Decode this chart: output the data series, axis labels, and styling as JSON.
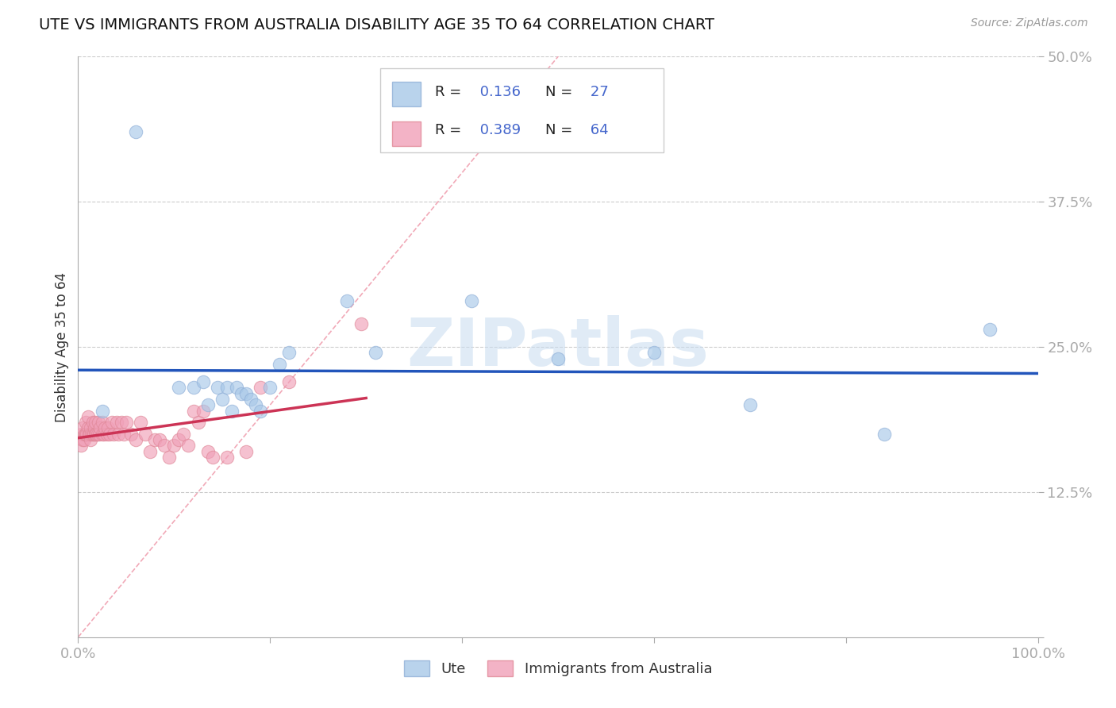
{
  "title": "UTE VS IMMIGRANTS FROM AUSTRALIA DISABILITY AGE 35 TO 64 CORRELATION CHART",
  "source": "Source: ZipAtlas.com",
  "ylabel": "Disability Age 35 to 64",
  "legend_label1": "Ute",
  "legend_label2": "Immigrants from Australia",
  "r1": 0.136,
  "n1": 27,
  "r2": 0.389,
  "n2": 64,
  "color_ute": "#A8C8E8",
  "color_ute_edge": "#90B0D8",
  "color_immig": "#F0A0B8",
  "color_immig_edge": "#E08898",
  "color_ute_line": "#2255BB",
  "color_immig_line": "#CC3355",
  "color_diag": "#F0A0B0",
  "xmin": 0.0,
  "xmax": 1.0,
  "ymin": 0.0,
  "ymax": 0.5,
  "watermark": "ZIPatlas",
  "background_color": "#FFFFFF",
  "ute_x": [
    0.025,
    0.06,
    0.105,
    0.12,
    0.13,
    0.135,
    0.145,
    0.15,
    0.155,
    0.16,
    0.165,
    0.17,
    0.175,
    0.18,
    0.185,
    0.19,
    0.2,
    0.21,
    0.22,
    0.28,
    0.31,
    0.41,
    0.5,
    0.6,
    0.7,
    0.84,
    0.95
  ],
  "ute_y": [
    0.195,
    0.435,
    0.215,
    0.215,
    0.22,
    0.2,
    0.215,
    0.205,
    0.215,
    0.195,
    0.215,
    0.21,
    0.21,
    0.205,
    0.2,
    0.195,
    0.215,
    0.235,
    0.245,
    0.29,
    0.245,
    0.29,
    0.24,
    0.245,
    0.2,
    0.175,
    0.265
  ],
  "immig_x": [
    0.003,
    0.004,
    0.005,
    0.005,
    0.006,
    0.007,
    0.008,
    0.008,
    0.009,
    0.01,
    0.01,
    0.011,
    0.012,
    0.013,
    0.013,
    0.014,
    0.015,
    0.015,
    0.016,
    0.017,
    0.018,
    0.018,
    0.019,
    0.02,
    0.021,
    0.022,
    0.023,
    0.025,
    0.025,
    0.027,
    0.028,
    0.03,
    0.031,
    0.033,
    0.035,
    0.037,
    0.04,
    0.042,
    0.045,
    0.048,
    0.05,
    0.055,
    0.06,
    0.065,
    0.07,
    0.075,
    0.08,
    0.085,
    0.09,
    0.095,
    0.1,
    0.105,
    0.11,
    0.115,
    0.12,
    0.125,
    0.13,
    0.135,
    0.14,
    0.155,
    0.175,
    0.19,
    0.22,
    0.295
  ],
  "immig_y": [
    0.165,
    0.175,
    0.17,
    0.18,
    0.17,
    0.175,
    0.175,
    0.185,
    0.175,
    0.18,
    0.19,
    0.175,
    0.175,
    0.17,
    0.18,
    0.175,
    0.175,
    0.185,
    0.175,
    0.18,
    0.175,
    0.185,
    0.175,
    0.175,
    0.185,
    0.175,
    0.18,
    0.175,
    0.185,
    0.175,
    0.18,
    0.175,
    0.18,
    0.175,
    0.185,
    0.175,
    0.185,
    0.175,
    0.185,
    0.175,
    0.185,
    0.175,
    0.17,
    0.185,
    0.175,
    0.16,
    0.17,
    0.17,
    0.165,
    0.155,
    0.165,
    0.17,
    0.175,
    0.165,
    0.195,
    0.185,
    0.195,
    0.16,
    0.155,
    0.155,
    0.16,
    0.215,
    0.22,
    0.27
  ]
}
